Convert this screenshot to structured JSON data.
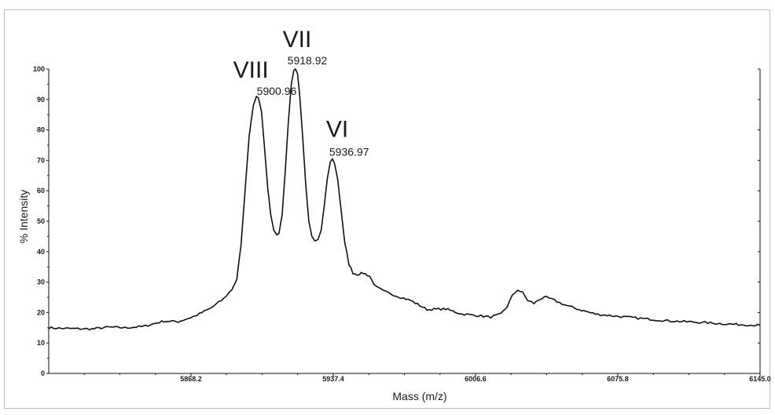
{
  "chart_data": {
    "type": "line",
    "xlabel": "Mass (m/z)",
    "ylabel": "% Intensity",
    "xlim": [
      5799.0,
      6145.0
    ],
    "ylim": [
      0,
      100
    ],
    "x_ticks": [
      "5868.2",
      "5937.4",
      "6006.6",
      "6075.8",
      "6145.0"
    ],
    "y_ticks": [
      "0",
      "10",
      "20",
      "30",
      "40",
      "50",
      "60",
      "70",
      "80",
      "90",
      "100"
    ],
    "grid": false,
    "peaks": [
      {
        "roman": "VIII",
        "mass_label": "5900.96",
        "mass": 5900.96,
        "intensity": 91
      },
      {
        "roman": "VII",
        "mass_label": "5918.92",
        "mass": 5918.92,
        "intensity": 100
      },
      {
        "roman": "VI",
        "mass_label": "5936.97",
        "mass": 5936.97,
        "intensity": 70.5
      }
    ],
    "series": [
      {
        "color": "#111111",
        "x": [
          5799.0,
          5805.0,
          5812.0,
          5820.0,
          5828.0,
          5836.0,
          5845.0,
          5855.0,
          5862.0,
          5870.0,
          5878.0,
          5884.0,
          5888.0,
          5890.5,
          5892.5,
          5894.5,
          5896.5,
          5898.5,
          5900.0,
          5901.0,
          5902.5,
          5904.0,
          5905.5,
          5907.0,
          5908.5,
          5910.0,
          5911.0,
          5912.5,
          5914.0,
          5915.5,
          5917.0,
          5918.2,
          5919.0,
          5920.0,
          5921.0,
          5922.5,
          5924.0,
          5925.5,
          5927.0,
          5928.5,
          5930.0,
          5931.5,
          5933.0,
          5934.5,
          5936.0,
          5937.0,
          5938.0,
          5939.5,
          5941.0,
          5943.0,
          5945.0,
          5947.0,
          5949.0,
          5952.0,
          5955.0,
          5958.0,
          5962.0,
          5968.0,
          5975.0,
          5983.0,
          5992.0,
          6000.0,
          6008.0,
          6014.0,
          6019.0,
          6022.0,
          6024.5,
          6027.0,
          6029.5,
          6032.0,
          6035.0,
          6038.0,
          6041.0,
          6045.0,
          6050.0,
          6057.0,
          6065.0,
          6075.0,
          6088.0,
          6100.0,
          6115.0,
          6130.0,
          6145.0
        ],
        "y": [
          15.0,
          14.8,
          14.7,
          14.6,
          15.2,
          15.0,
          15.4,
          17.2,
          17.0,
          18.8,
          21.5,
          24.5,
          27.5,
          31.0,
          42.0,
          60.0,
          78.0,
          88.0,
          91.0,
          90.5,
          86.0,
          74.0,
          61.0,
          52.0,
          47.0,
          45.5,
          46.0,
          52.0,
          66.0,
          82.0,
          95.0,
          99.5,
          100.0,
          98.5,
          92.0,
          78.0,
          62.0,
          50.0,
          45.0,
          43.5,
          44.0,
          47.0,
          55.0,
          64.0,
          69.5,
          70.5,
          69.0,
          64.0,
          55.0,
          43.0,
          36.0,
          33.0,
          32.5,
          33.0,
          32.0,
          28.5,
          27.0,
          25.5,
          24.0,
          21.0,
          21.2,
          19.5,
          19.0,
          18.5,
          19.5,
          22.0,
          25.5,
          27.5,
          26.5,
          24.0,
          23.0,
          24.5,
          25.0,
          24.0,
          22.5,
          21.0,
          19.5,
          18.8,
          18.0,
          17.3,
          16.8,
          16.2,
          15.8
        ]
      }
    ]
  }
}
